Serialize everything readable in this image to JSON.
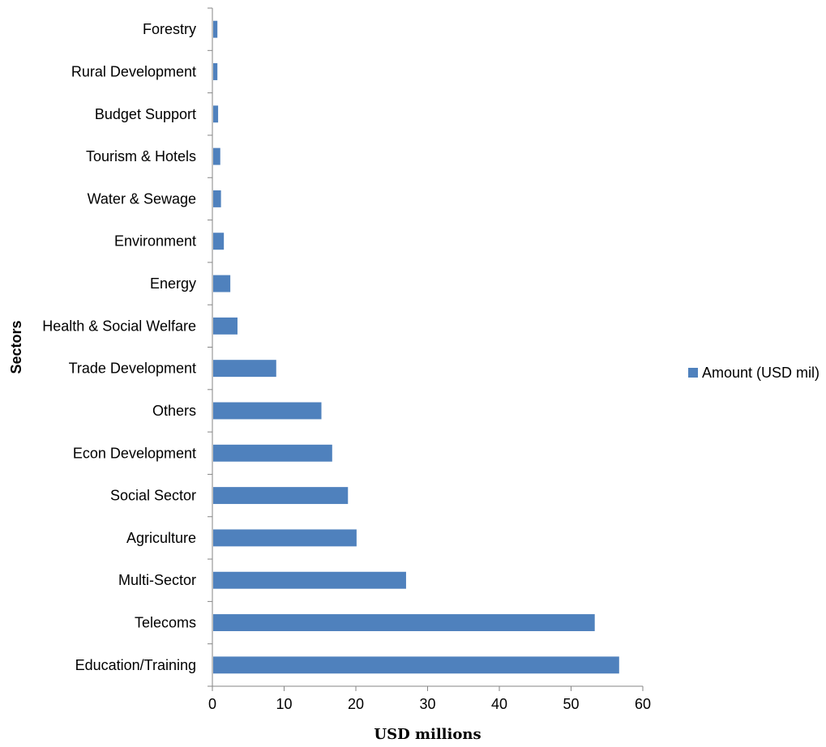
{
  "chart_data": {
    "type": "bar",
    "orientation": "horizontal",
    "categories": [
      "Education/Training",
      "Telecoms",
      "Multi-Sector",
      "Agriculture",
      "Social Sector",
      "Econ Development",
      "Others",
      "Trade Development",
      "Health & Social Welfare",
      "Energy",
      "Environment",
      "Water & Sewage",
      "Tourism & Hotels",
      "Budget Support",
      "Rural Development",
      "Forestry"
    ],
    "series": [
      {
        "name": "Amount (USD mil)",
        "color": "#4F81BD",
        "values": [
          56.7,
          53.3,
          27.0,
          20.1,
          18.9,
          16.7,
          15.2,
          8.9,
          3.5,
          2.5,
          1.6,
          1.2,
          1.1,
          0.8,
          0.7,
          0.7
        ]
      }
    ],
    "xlabel": "USD millions",
    "ylabel": "Sectors",
    "xlim": [
      0,
      60
    ],
    "xticks": [
      0,
      10,
      20,
      30,
      40,
      50,
      60
    ],
    "grid": false,
    "legend_position": "right"
  }
}
